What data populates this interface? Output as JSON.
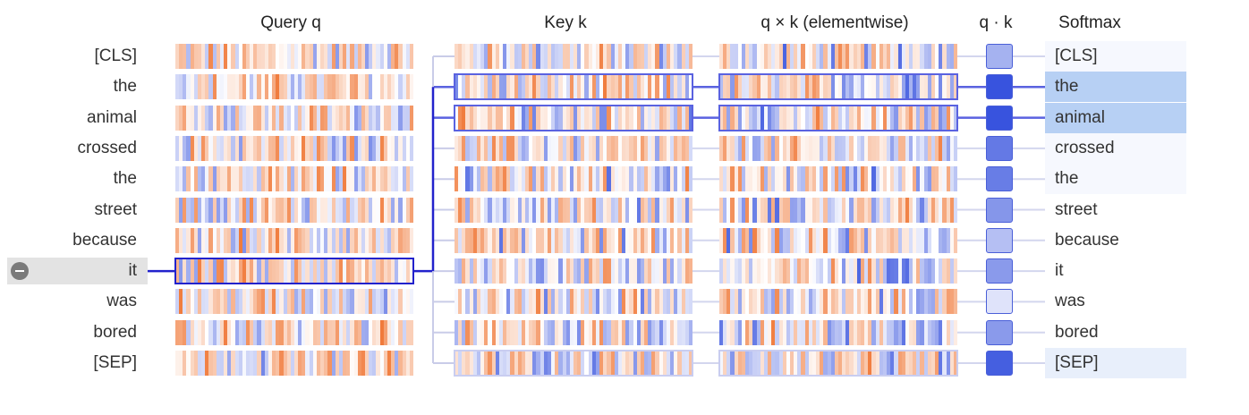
{
  "headers": {
    "query": "Query q",
    "key": "Key k",
    "product": "q × k (elementwise)",
    "dot": "q · k",
    "softmax": "Softmax"
  },
  "tokens": [
    "[CLS]",
    "the",
    "animal",
    "crossed",
    "the",
    "street",
    "because",
    "it",
    "was",
    "bored",
    "[SEP]"
  ],
  "selected_token_index": 7,
  "softmax_tokens": [
    "[CLS]",
    "the",
    "animal",
    "crossed",
    "the",
    "street",
    "because",
    "it",
    "was",
    "bored",
    "[SEP]"
  ],
  "dot_product_strength": [
    0.38,
    0.95,
    0.95,
    0.72,
    0.7,
    0.55,
    0.3,
    0.52,
    0.08,
    0.52,
    0.88
  ],
  "softmax_weight": [
    0.05,
    0.6,
    0.6,
    0.06,
    0.06,
    0.0,
    0.0,
    0.0,
    0.0,
    0.0,
    0.2
  ],
  "highlighted_rows": [
    1,
    2
  ],
  "colors": {
    "positive": "#f07a3a",
    "negative": "#2e4bdc",
    "selection_border": "#2222cc",
    "highlight_border": "#5a62e0",
    "softmax_fill": "#b7d0f4"
  }
}
